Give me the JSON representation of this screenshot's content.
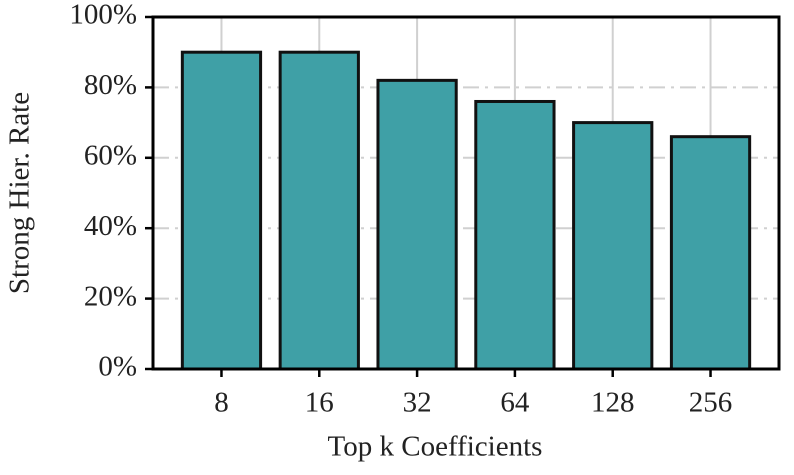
{
  "chart_data": {
    "type": "bar",
    "xlabel": "Top k Coefficients",
    "ylabel": "Strong Hier. Rate",
    "categories": [
      "8",
      "16",
      "32",
      "64",
      "128",
      "256"
    ],
    "values": [
      90,
      90,
      82,
      76,
      70,
      66
    ],
    "color": "#3fa0a6",
    "ylim": [
      0,
      100
    ],
    "yticks": [
      {
        "value": 0,
        "label": "0%"
      },
      {
        "value": 20,
        "label": "20%"
      },
      {
        "value": 40,
        "label": "40%"
      },
      {
        "value": 60,
        "label": "60%"
      },
      {
        "value": 80,
        "label": "80%"
      },
      {
        "value": 100,
        "label": "100%"
      }
    ],
    "grid": true
  }
}
